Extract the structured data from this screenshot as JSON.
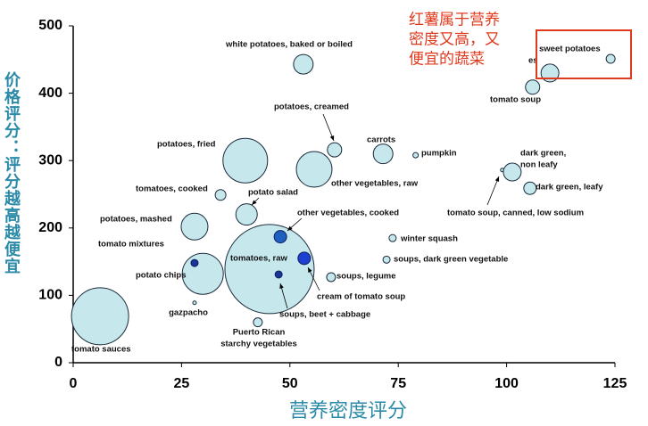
{
  "chart_data": {
    "type": "bubble",
    "xlabel": "营养密度评分",
    "ylabel": "价格评分：评分越高越便宜",
    "annotation": [
      "红薯属于营养",
      "密度又高，又",
      "便宜的蔬菜"
    ],
    "xlim": [
      0,
      125
    ],
    "xticks": [
      0,
      25,
      50,
      75,
      100,
      125
    ],
    "ylim": [
      0,
      500
    ],
    "yticks": [
      0,
      100,
      200,
      300,
      400,
      500
    ],
    "points": [
      {
        "label": [
          "tomato sauces"
        ],
        "x": 6.2,
        "y": 69,
        "size": 32,
        "color": "#c6e7ec"
      },
      {
        "label": [
          "gazpacho"
        ],
        "x": 28,
        "y": 89,
        "size": 2,
        "color": "#c6e7ec"
      },
      {
        "label": [
          "potato chips"
        ],
        "x": 29.9,
        "y": 132,
        "size": 23,
        "color": "#c6e7ec"
      },
      {
        "label": [
          "tomato mixtures"
        ],
        "x": 28,
        "y": 148,
        "size": 4,
        "color": "#1a3596"
      },
      {
        "label": [
          "potatoes, mashed"
        ],
        "x": 28,
        "y": 202,
        "size": 15,
        "color": "#c6e7ec"
      },
      {
        "label": [
          "tomatoes, cooked"
        ],
        "x": 34,
        "y": 249,
        "size": 6,
        "color": "#c6e7ec"
      },
      {
        "label": [
          "potatoes, fried"
        ],
        "x": 39.7,
        "y": 300,
        "size": 25,
        "color": "#c6e7ec"
      },
      {
        "label": [
          "potato salad"
        ],
        "x": 40,
        "y": 220,
        "size": 12,
        "color": "#c6e7ec"
      },
      {
        "label": [
          "tomatoes, raw"
        ],
        "x": 45.3,
        "y": 139,
        "size": 50,
        "color": "#c6e7ec"
      },
      {
        "label": [
          "Puerto Rican",
          "starchy vegetables"
        ],
        "x": 42.6,
        "y": 60,
        "size": 5,
        "color": "#c6e7ec"
      },
      {
        "label": [
          "soups, beet + cabbage"
        ],
        "x": 47.4,
        "y": 131,
        "size": 4,
        "color": "#1a3596"
      },
      {
        "label": [
          "other vegetables, cooked"
        ],
        "x": 47.8,
        "y": 187,
        "size": 7,
        "color": "#1f5fbf"
      },
      {
        "label": [
          "cream of tomato soup"
        ],
        "x": 53.3,
        "y": 155,
        "size": 7,
        "color": "#1f3fd0"
      },
      {
        "label": [
          "white potatoes, baked or boiled"
        ],
        "x": 53.1,
        "y": 443,
        "size": 11,
        "color": "#c6e7ec"
      },
      {
        "label": [
          "potatoes, creamed"
        ],
        "x": 60.3,
        "y": 316,
        "size": 8,
        "color": "#c6e7ec"
      },
      {
        "label": [
          "other vegetables, raw"
        ],
        "x": 55.6,
        "y": 287,
        "size": 20,
        "color": "#c6e7ec"
      },
      {
        "label": [
          "soups, legume"
        ],
        "x": 59.5,
        "y": 127,
        "size": 5,
        "color": "#c6e7ec"
      },
      {
        "label": [
          "carrots"
        ],
        "x": 71.5,
        "y": 310,
        "size": 11,
        "color": "#c6e7ec"
      },
      {
        "label": [
          "pumpkin"
        ],
        "x": 79,
        "y": 308,
        "size": 3,
        "color": "#c6e7ec"
      },
      {
        "label": [
          "winter squash"
        ],
        "x": 73.7,
        "y": 185,
        "size": 4,
        "color": "#c6e7ec"
      },
      {
        "label": [
          "soups, dark green vegetable"
        ],
        "x": 72.3,
        "y": 153,
        "size": 4,
        "color": "#c6e7ec"
      },
      {
        "label": [
          "tomato soup, canned, low sodium"
        ],
        "x": 99,
        "y": 286,
        "size": 2,
        "color": "#c6e7ec"
      },
      {
        "label": [
          "dark green,",
          "non leafy"
        ],
        "x": 101.3,
        "y": 283,
        "size": 10,
        "color": "#c6e7ec"
      },
      {
        "label": [
          "dark green, leafy"
        ],
        "x": 105.4,
        "y": 259,
        "size": 7,
        "color": "#c6e7ec"
      },
      {
        "label": [
          "tomato soup"
        ],
        "x": 106,
        "y": 409,
        "size": 8,
        "color": "#c6e7ec"
      },
      {
        "label": [
          "es"
        ],
        "x": 110,
        "y": 430,
        "size": 10,
        "color": "#c6e7ec"
      },
      {
        "label": [
          "sweet potatoes"
        ],
        "x": 124,
        "y": 451,
        "size": 5,
        "color": "#c6e7ec"
      }
    ]
  }
}
